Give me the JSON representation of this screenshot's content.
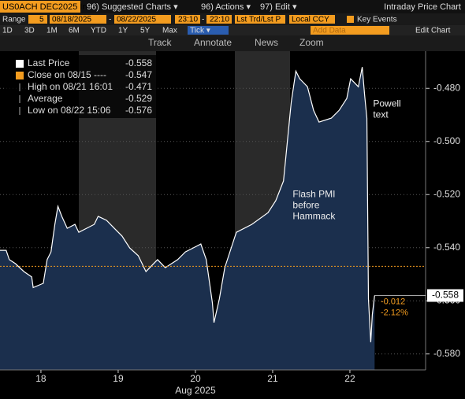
{
  "toolbar": {
    "ticker": "US0ACH DEC2025 In",
    "menu": [
      "96) Suggested Charts ▾",
      "96) Actions ▾",
      "97) Edit ▾"
    ],
    "title": "Intraday Price Chart",
    "range_label": "Range",
    "range_value": "5",
    "start": "08/18/2025",
    "dash": "-",
    "end": "08/22/2025",
    "time_start": "23:10",
    "time_end": "22:10",
    "price_type": "Lst Trd/Lst P",
    "currency": "Local CCY",
    "events": "Key Events",
    "periods": [
      "1D",
      "3D",
      "1M",
      "6M",
      "YTD",
      "1Y",
      "5Y",
      "Max",
      "Tick ▾"
    ],
    "add_data": "Add Data",
    "edit_chart": "Edit Chart",
    "tools": [
      "Track",
      "Annotate",
      "News",
      "Zoom"
    ]
  },
  "chart_data": {
    "type": "area",
    "x_label": "Aug 2025",
    "x": [
      17.47,
      17.55,
      17.59,
      17.67,
      17.78,
      17.88,
      17.9,
      18.03,
      18.08,
      18.13,
      18.18,
      18.22,
      18.27,
      18.34,
      18.44,
      18.49,
      18.59,
      18.69,
      18.74,
      18.85,
      18.95,
      19.05,
      19.15,
      19.26,
      19.36,
      19.51,
      19.61,
      19.77,
      19.87,
      19.97,
      20.07,
      20.14,
      20.22,
      20.24,
      20.31,
      20.38,
      20.48,
      20.53,
      20.73,
      20.94,
      21.04,
      21.14,
      21.19,
      21.24,
      21.3,
      21.35,
      21.45,
      21.53,
      21.6,
      21.76,
      21.86,
      21.96,
      22.01,
      22.11,
      22.16,
      22.19,
      22.22,
      22.24,
      22.27,
      22.29,
      22.32
    ],
    "series": [
      {
        "name": "Last Price",
        "color": "#ffffff",
        "fill": "#1b2f4d",
        "values": [
          -0.541,
          -0.541,
          -0.5445,
          -0.546,
          -0.549,
          -0.551,
          -0.555,
          -0.5534,
          -0.5445,
          -0.5416,
          -0.5312,
          -0.5244,
          -0.5282,
          -0.5327,
          -0.5312,
          -0.5342,
          -0.5327,
          -0.5312,
          -0.5282,
          -0.5297,
          -0.5327,
          -0.5356,
          -0.5401,
          -0.543,
          -0.549,
          -0.5445,
          -0.5475,
          -0.5445,
          -0.5416,
          -0.5401,
          -0.5386,
          -0.5445,
          -0.5608,
          -0.5682,
          -0.5593,
          -0.5475,
          -0.5386,
          -0.5342,
          -0.5312,
          -0.5268,
          -0.5223,
          -0.5149,
          -0.5001,
          -0.4853,
          -0.4735,
          -0.4764,
          -0.4794,
          -0.4883,
          -0.4927,
          -0.4912,
          -0.4883,
          -0.4838,
          -0.4764,
          -0.4794,
          -0.472,
          -0.4824,
          -0.4912,
          -0.5593,
          -0.5756,
          -0.5652,
          -0.558
        ]
      }
    ],
    "xlim": [
      17.47,
      22.98
    ],
    "xticks": [
      18,
      19,
      20,
      21,
      22
    ],
    "ylim": [
      -0.586,
      -0.466
    ],
    "yticks": [
      {
        "value": -0.48,
        "label": "-0.480"
      },
      {
        "value": -0.5,
        "label": "-0.500"
      },
      {
        "value": -0.52,
        "label": "-0.520"
      },
      {
        "value": -0.54,
        "label": "-0.540"
      },
      {
        "value": -0.56,
        "label": "-0.560"
      },
      {
        "value": -0.58,
        "label": "-0.580"
      }
    ],
    "grid": true,
    "reference_line": {
      "value": -0.547,
      "color": "#f39c1f"
    },
    "stats": [
      {
        "label": "Last Price",
        "value": -0.558
      },
      {
        "label": "Close on 08/15 ----",
        "value": -0.547
      },
      {
        "label": "High on 08/21 16:01",
        "value": -0.471
      },
      {
        "label": "Average",
        "value": -0.529
      },
      {
        "label": "Low on 08/22 15:06",
        "value": -0.576
      }
    ],
    "last_tag": -0.558,
    "change": -0.012,
    "change_pct": "-2.12%",
    "annotations": [
      {
        "text": "Powell\ntext",
        "x": 22.3,
        "y": -0.486
      },
      {
        "text": "Flash PMI\nbefore\nHammack",
        "x": 21.26,
        "y": -0.52
      }
    ]
  }
}
